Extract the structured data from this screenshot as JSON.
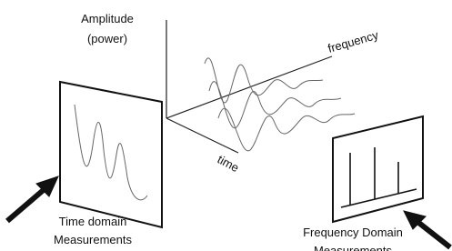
{
  "labels": {
    "amplitude": "Amplitude",
    "power": "(power)",
    "frequency": "frequency",
    "time": "time",
    "time_domain": "Time domain",
    "time_domain_measurements": "Measurements",
    "frequency_domain": "Frequency Domain",
    "frequency_domain_measurements": "Measurements"
  }
}
